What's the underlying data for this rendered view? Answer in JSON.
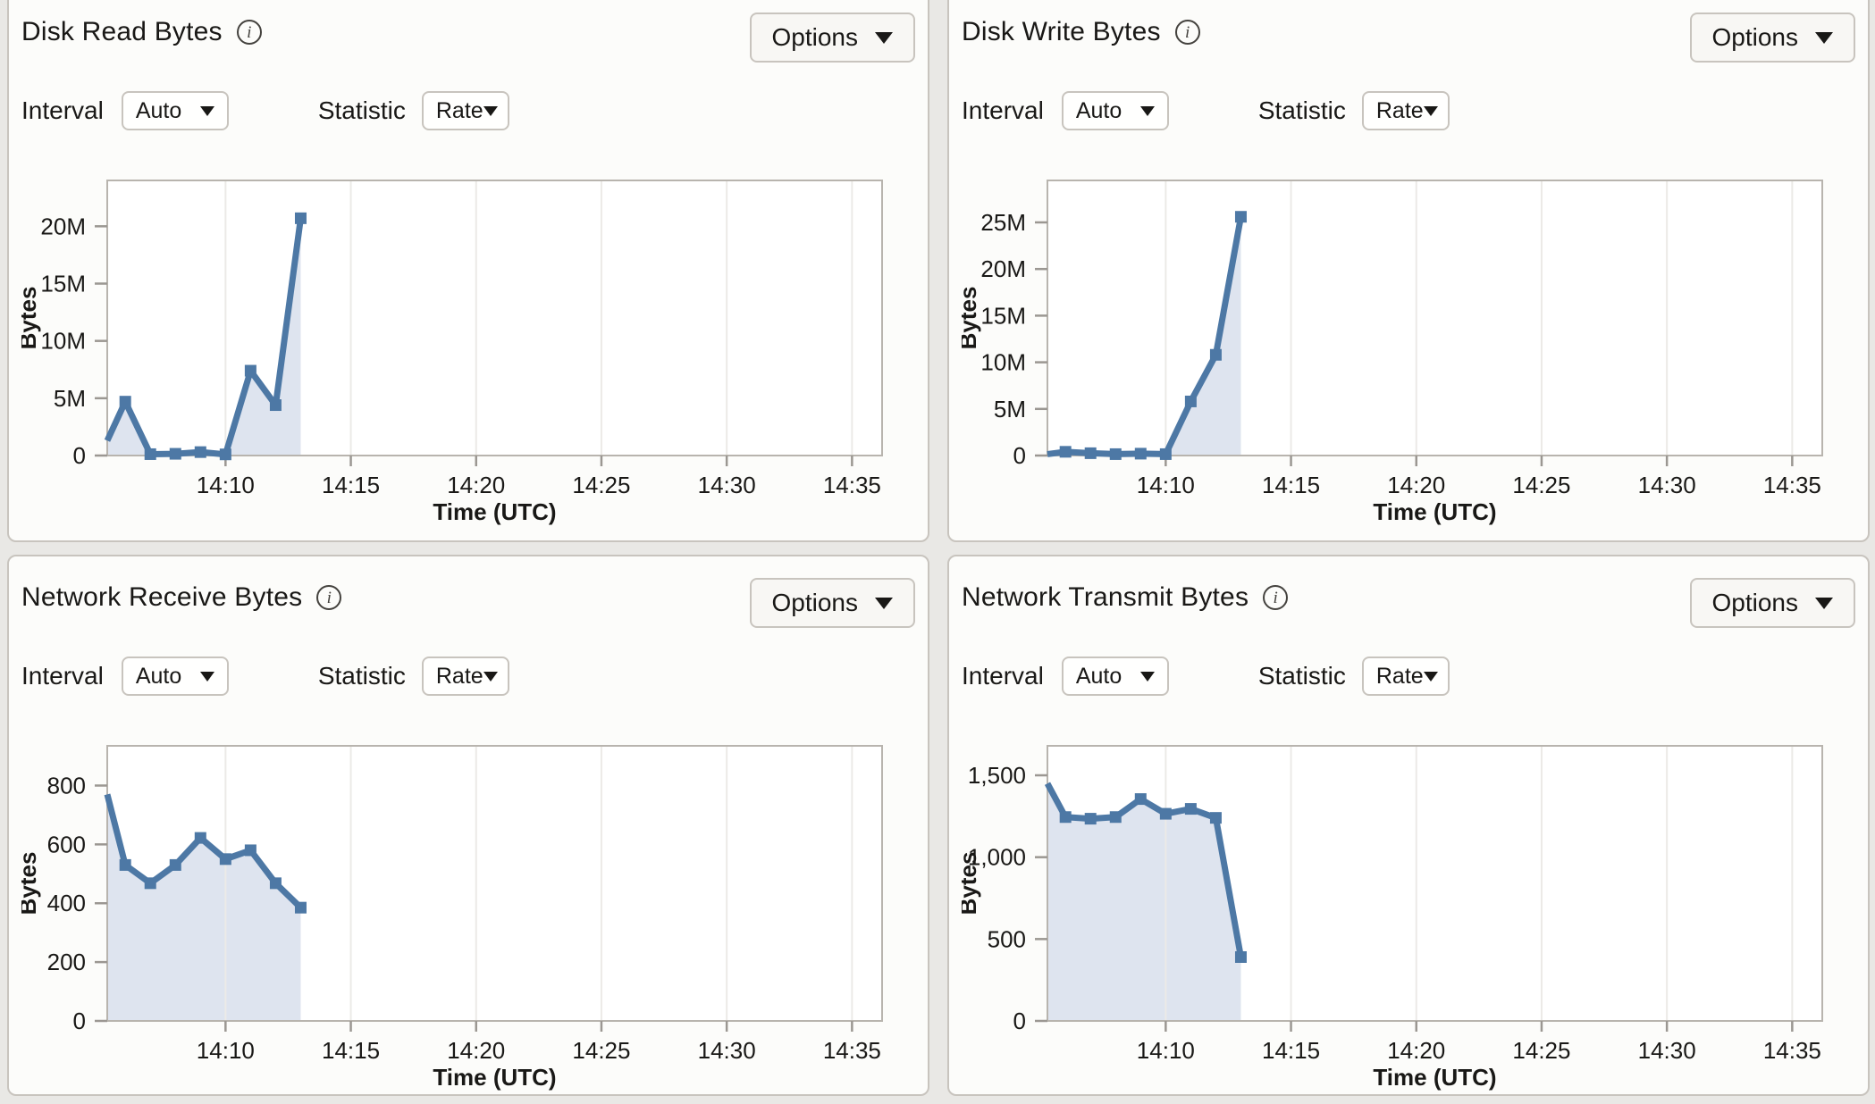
{
  "page": {
    "background_color": "#e9e8e5",
    "panel_background_color": "#fcfcfa",
    "panel_border_color": "#c8c4be",
    "line_color": "#4d78a5",
    "area_fill_color": "#dee4ef"
  },
  "panels": [
    {
      "title": "Disk Read Bytes",
      "info_glyph": "i",
      "options_label": "Options",
      "interval_label": "Interval",
      "interval_value": "Auto",
      "statistic_label": "Statistic",
      "statistic_value": "Rate"
    },
    {
      "title": "Disk Write Bytes",
      "info_glyph": "i",
      "options_label": "Options",
      "interval_label": "Interval",
      "interval_value": "Auto",
      "statistic_label": "Statistic",
      "statistic_value": "Rate"
    },
    {
      "title": "Network Receive Bytes",
      "info_glyph": "i",
      "options_label": "Options",
      "interval_label": "Interval",
      "interval_value": "Auto",
      "statistic_label": "Statistic",
      "statistic_value": "Rate"
    },
    {
      "title": "Network Transmit Bytes",
      "info_glyph": "i",
      "options_label": "Options",
      "interval_label": "Interval",
      "interval_value": "Auto",
      "statistic_label": "Statistic",
      "statistic_value": "Rate"
    }
  ],
  "chart_data": [
    {
      "type": "area",
      "title": "Disk Read Bytes",
      "xlabel": "Time (UTC)",
      "ylabel": "Bytes",
      "x_times": [
        "14:05",
        "14:06",
        "14:07",
        "14:08",
        "14:09",
        "14:10",
        "14:11",
        "14:12",
        "14:13"
      ],
      "x_minutes": [
        5.28,
        6,
        7,
        8,
        9,
        10,
        11,
        12,
        13
      ],
      "values": [
        1300000,
        4700000,
        120000,
        150000,
        300000,
        100000,
        7400000,
        4400000,
        20700000
      ],
      "x_domain_minutes": [
        5.28,
        36.2
      ],
      "x_tick_minutes": [
        10,
        15,
        20,
        25,
        30,
        35
      ],
      "x_tick_labels": [
        "14:10",
        "14:15",
        "14:20",
        "14:25",
        "14:30",
        "14:35"
      ],
      "y_ticks": [
        0,
        5000000,
        10000000,
        15000000,
        20000000
      ],
      "y_tick_labels": [
        "0",
        "5M",
        "10M",
        "15M",
        "20M"
      ],
      "ylim": [
        0,
        24000000
      ],
      "series_color": "#4d78a5",
      "fill_color": "#dee4ef",
      "grid": "vertical",
      "legend": "none"
    },
    {
      "type": "area",
      "title": "Disk Write Bytes",
      "xlabel": "Time (UTC)",
      "ylabel": "Bytes",
      "x_times": [
        "14:05",
        "14:06",
        "14:07",
        "14:08",
        "14:09",
        "14:10",
        "14:11",
        "14:12",
        "14:13"
      ],
      "x_minutes": [
        5.28,
        6,
        7,
        8,
        9,
        10,
        11,
        12,
        13
      ],
      "values": [
        150000,
        400000,
        250000,
        150000,
        200000,
        150000,
        5800000,
        10800000,
        25600000
      ],
      "x_domain_minutes": [
        5.28,
        36.2
      ],
      "x_tick_minutes": [
        10,
        15,
        20,
        25,
        30,
        35
      ],
      "x_tick_labels": [
        "14:10",
        "14:15",
        "14:20",
        "14:25",
        "14:30",
        "14:35"
      ],
      "y_ticks": [
        0,
        5000000,
        10000000,
        15000000,
        20000000,
        25000000
      ],
      "y_tick_labels": [
        "0",
        "5M",
        "10M",
        "15M",
        "20M",
        "25M"
      ],
      "ylim": [
        0,
        29500000
      ],
      "series_color": "#4d78a5",
      "fill_color": "#dee4ef",
      "grid": "vertical",
      "legend": "none"
    },
    {
      "type": "area",
      "title": "Network Receive Bytes",
      "xlabel": "Time (UTC)",
      "ylabel": "Bytes",
      "x_times": [
        "14:05",
        "14:06",
        "14:07",
        "14:08",
        "14:09",
        "14:10",
        "14:11",
        "14:12",
        "14:13"
      ],
      "x_minutes": [
        5.28,
        6,
        7,
        8,
        9,
        10,
        11,
        12,
        13
      ],
      "values": [
        770,
        530,
        468,
        530,
        622,
        550,
        580,
        468,
        385
      ],
      "x_domain_minutes": [
        5.28,
        36.2
      ],
      "x_tick_minutes": [
        10,
        15,
        20,
        25,
        30,
        35
      ],
      "x_tick_labels": [
        "14:10",
        "14:15",
        "14:20",
        "14:25",
        "14:30",
        "14:35"
      ],
      "y_ticks": [
        0,
        200,
        400,
        600,
        800
      ],
      "y_tick_labels": [
        "0",
        "200",
        "400",
        "600",
        "800"
      ],
      "ylim": [
        0,
        935
      ],
      "series_color": "#4d78a5",
      "fill_color": "#dee4ef",
      "grid": "vertical",
      "legend": "none"
    },
    {
      "type": "area",
      "title": "Network Transmit Bytes",
      "xlabel": "Time (UTC)",
      "ylabel": "Bytes",
      "x_times": [
        "14:05",
        "14:06",
        "14:07",
        "14:08",
        "14:09",
        "14:10",
        "14:11",
        "14:12",
        "14:13"
      ],
      "x_minutes": [
        5.28,
        6,
        7,
        8,
        9,
        10,
        11,
        12,
        13
      ],
      "values": [
        1450,
        1245,
        1235,
        1245,
        1355,
        1265,
        1295,
        1240,
        390
      ],
      "x_domain_minutes": [
        5.28,
        36.2
      ],
      "x_tick_minutes": [
        10,
        15,
        20,
        25,
        30,
        35
      ],
      "x_tick_labels": [
        "14:10",
        "14:15",
        "14:20",
        "14:25",
        "14:30",
        "14:35"
      ],
      "y_ticks": [
        0,
        500,
        1000,
        1500
      ],
      "y_tick_labels": [
        "0",
        "500",
        "1,000",
        "1,500"
      ],
      "ylim": [
        0,
        1680
      ],
      "series_color": "#4d78a5",
      "fill_color": "#dee4ef",
      "grid": "vertical",
      "legend": "none"
    }
  ]
}
